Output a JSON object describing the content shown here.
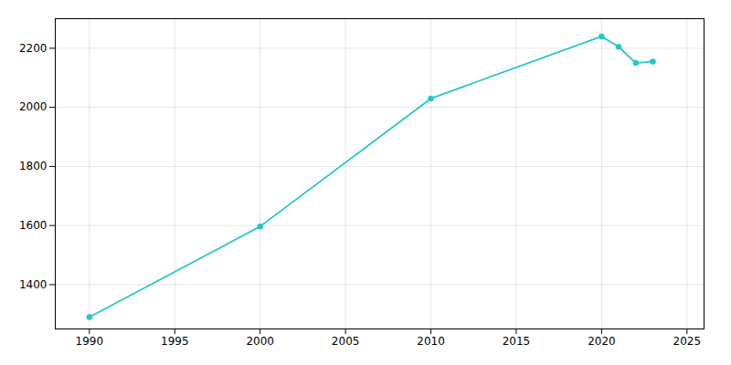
{
  "chart_data": {
    "type": "line",
    "x": [
      1990,
      2000,
      2010,
      2020,
      2021,
      2022,
      2023
    ],
    "values": [
      1290,
      1597,
      2030,
      2240,
      2205,
      2150,
      2155
    ],
    "color": "#26c6c6",
    "marker": "circle",
    "xlim": [
      1988,
      2026
    ],
    "ylim": [
      1250,
      2300
    ],
    "xticks": [
      1990,
      1995,
      2000,
      2005,
      2010,
      2015,
      2020,
      2025
    ],
    "yticks": [
      1400,
      1600,
      1800,
      2000,
      2200
    ],
    "grid": true
  }
}
